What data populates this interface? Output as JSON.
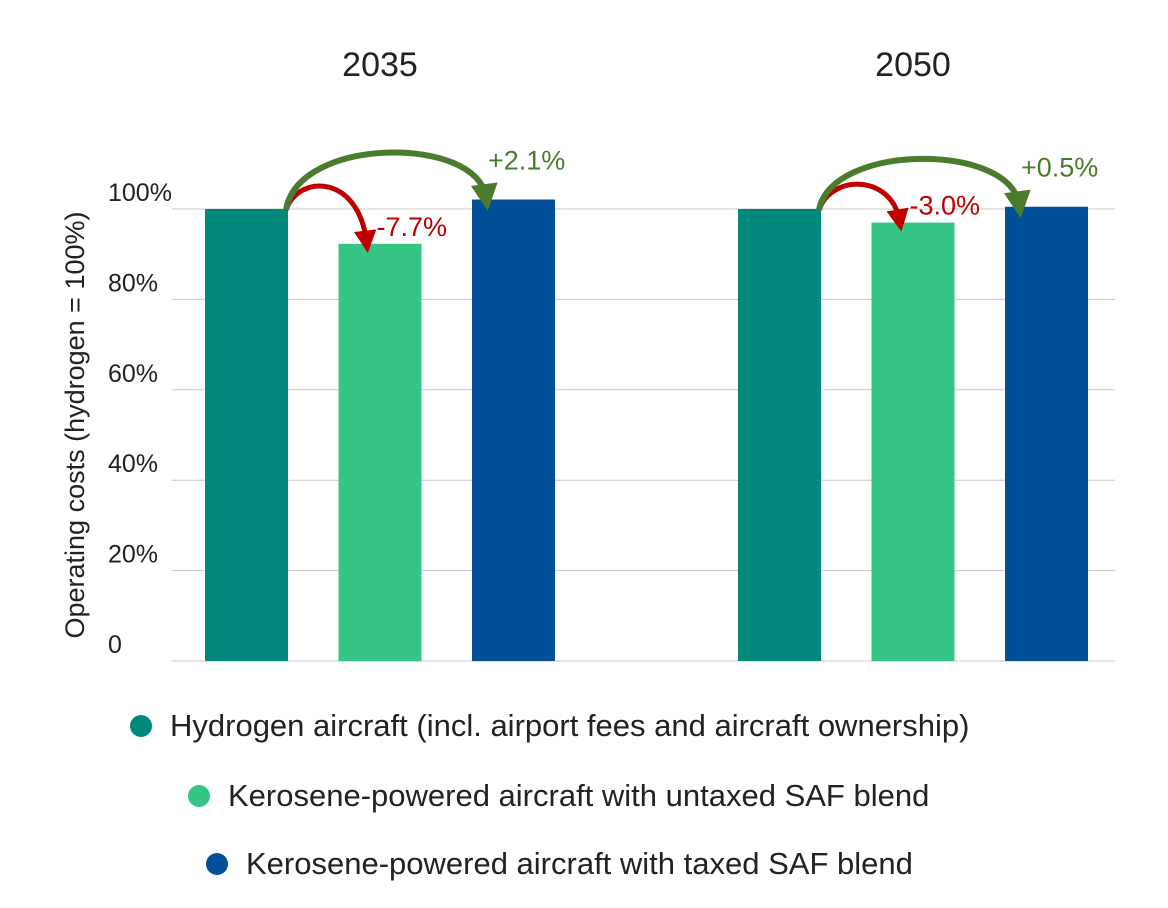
{
  "chart_data": {
    "type": "bar",
    "ylabel": "Operating costs (hydrogen = 100%)",
    "ylim": [
      0,
      100
    ],
    "yticks": [
      "0",
      "20%",
      "40%",
      "60%",
      "80%",
      "100%"
    ],
    "ytick_values": [
      0,
      20,
      40,
      60,
      80,
      100
    ],
    "grid": true,
    "categories": [
      "2035",
      "2050"
    ],
    "series": [
      {
        "name": "Hydrogen aircraft (incl. airport fees and aircraft ownership)",
        "values": [
          100,
          100
        ],
        "color": "#00887a"
      },
      {
        "name": "Kerosene-powered aircraft with untaxed SAF blend",
        "values": [
          92.3,
          97.0
        ],
        "color": "#35c585"
      },
      {
        "name": "Kerosene-powered aircraft with taxed SAF blend",
        "values": [
          102.1,
          100.5
        ],
        "color": "#004f98"
      }
    ],
    "annotations": [
      {
        "category": "2035",
        "from": 0,
        "to": 1,
        "label": "-7.7%",
        "color": "#c00000",
        "arrow": "red"
      },
      {
        "category": "2035",
        "from": 0,
        "to": 2,
        "label": "+2.1%",
        "color": "#4a7c2e",
        "arrow": "green"
      },
      {
        "category": "2050",
        "from": 0,
        "to": 1,
        "label": "-3.0%",
        "color": "#c00000",
        "arrow": "red"
      },
      {
        "category": "2050",
        "from": 0,
        "to": 2,
        "label": "+0.5%",
        "color": "#4a7c2e",
        "arrow": "green"
      }
    ],
    "legend_position": "bottom"
  }
}
